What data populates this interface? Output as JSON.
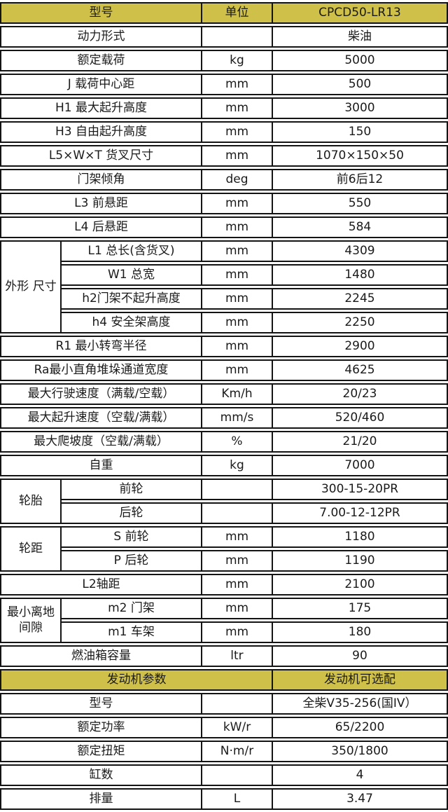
{
  "colors": {
    "header_bg": "#cfc04a",
    "border": "#141414",
    "text": "#1a1a1a"
  },
  "table": {
    "header": {
      "model_label": "型号",
      "unit_label": "单位",
      "model_value": "CPCD50-LR13"
    },
    "spec_rows": [
      {
        "label": "动力形式",
        "unit": "",
        "value": "柴油"
      },
      {
        "label": "额定载荷",
        "unit": "kg",
        "value": "5000"
      },
      {
        "label": "J 载荷中心距",
        "unit": "mm",
        "value": "500"
      },
      {
        "label": "H1 最大起升高度",
        "unit": "mm",
        "value": "3000"
      },
      {
        "label": "H3 自由起升高度",
        "unit": "mm",
        "value": "150"
      },
      {
        "label": "L5×W×T 货叉尺寸",
        "unit": "mm",
        "value": "1070×150×50"
      },
      {
        "label": "门架倾角",
        "unit": "deg",
        "value": "前6后12"
      },
      {
        "label": "L3 前悬距",
        "unit": "mm",
        "value": "550"
      },
      {
        "label": "L4 后悬距",
        "unit": "mm",
        "value": "584"
      },
      {
        "group": "外形 尺寸",
        "group_span": 4,
        "label": "L1 总长(含货叉)",
        "unit": "mm",
        "value": "4309"
      },
      {
        "label": "W1 总宽",
        "unit": "mm",
        "value": "1480"
      },
      {
        "label": "h2门架不起升高度",
        "unit": "mm",
        "value": "2245"
      },
      {
        "label": "h4 安全架高度",
        "unit": "mm",
        "value": "2250"
      },
      {
        "label": "R1 最小转弯半径",
        "unit": "mm",
        "value": "2900"
      },
      {
        "label": "Ra最小直角堆垛通道宽度",
        "unit": "mm",
        "value": "4625"
      },
      {
        "label": "最大行驶速度（满载/空载）",
        "unit": "Km/h",
        "value": "20/23"
      },
      {
        "label": "最大起升速度（空载/满载）",
        "unit": "mm/s",
        "value": "520/460"
      },
      {
        "label": "最大爬坡度（空载/满载）",
        "unit": "%",
        "value": "21/20"
      },
      {
        "label": "自重",
        "unit": "kg",
        "value": "7000"
      },
      {
        "group": "轮胎",
        "group_span": 2,
        "label": "前轮",
        "unit": "",
        "value": "300-15-20PR"
      },
      {
        "label": "后轮",
        "unit": "",
        "value": "7.00-12-12PR"
      },
      {
        "group": "轮距",
        "group_span": 2,
        "label": "S 前轮",
        "unit": "mm",
        "value": "1180"
      },
      {
        "label": "P 后轮",
        "unit": "mm",
        "value": "1190"
      },
      {
        "label": "L2轴距",
        "unit": "mm",
        "value": "2100"
      },
      {
        "group": "最小离地间隙",
        "group_span": 2,
        "label": "m2 门架",
        "unit": "mm",
        "value": "175"
      },
      {
        "label": "m1 车架",
        "unit": "mm",
        "value": "180"
      },
      {
        "label": "燃油箱容量",
        "unit": "ltr",
        "value": "90"
      }
    ],
    "engine_header": {
      "left": "发动机参数",
      "right": "发动机可选配"
    },
    "engine_rows": [
      {
        "label": "型号",
        "unit": "",
        "value": "全柴V35-256(国IV）"
      },
      {
        "label": "额定功率",
        "unit": "kW/r",
        "value": "65/2200"
      },
      {
        "label": "额定扭矩",
        "unit": "N·m/r",
        "value": "350/1800"
      },
      {
        "label": "缸数",
        "unit": "",
        "value": "4"
      },
      {
        "label": "排量",
        "unit": "L",
        "value": "3.47"
      }
    ]
  }
}
